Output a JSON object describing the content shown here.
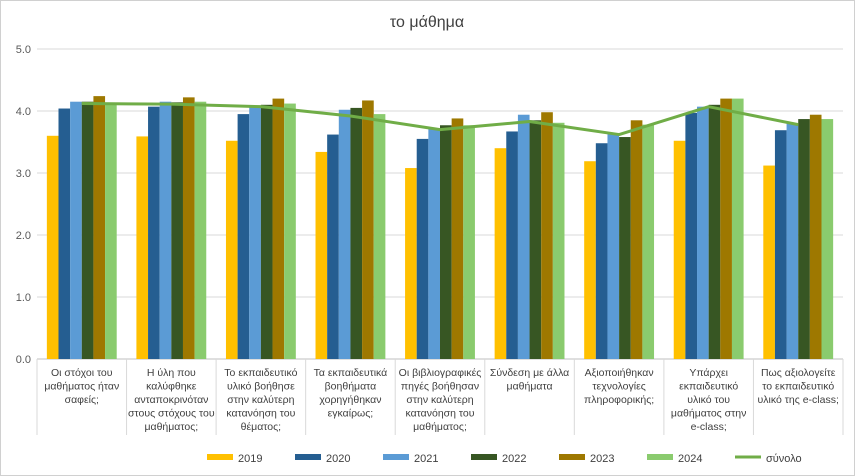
{
  "chart_data": {
    "type": "bar",
    "title": "το μάθημα",
    "xlabel": "",
    "ylabel": "",
    "ylim": [
      0,
      5
    ],
    "yticks": [
      "0.0",
      "1.0",
      "2.0",
      "3.0",
      "4.0",
      "5.0"
    ],
    "grid": true,
    "legend_position": "bottom",
    "categories": [
      "Οι στόχοι του μαθήματος ήταν σαφείς;",
      "Η ύλη που καλύφθηκε ανταποκρινόταν στους στόχους του μαθήματος;",
      "Το εκπαιδευτικό υλικό βοήθησε στην καλύτερη κατανόηση του θέματος;",
      "Τα εκπαιδευτικά βοηθήματα χορηγήθηκαν εγκαίρως;",
      "Οι βιβλιογραφικές πηγές βοήθησαν στην καλύτερη κατανόηση του μαθήματος;",
      "Σύνδεση με άλλα μαθήματα",
      "Αξιοποιήθηκαν τεχνολογίες πληροφορικής;",
      "Υπάρχει εκπαιδευτικό υλικό του μαθήματος στην e-class;",
      "Πως αξιολογείτε το εκπαιδευτικό υλικό της e-class;"
    ],
    "category_lines": [
      [
        "Οι στόχοι του",
        "μαθήματος ήταν",
        "σαφείς;"
      ],
      [
        "Η ύλη που",
        "καλύφθηκε",
        "ανταποκρινόταν",
        "στους στόχους του",
        "μαθήματος;"
      ],
      [
        "Το εκπαιδευτικό",
        "υλικό βοήθησε",
        "στην καλύτερη",
        "κατανόηση του",
        "θέματος;"
      ],
      [
        "Τα εκπαιδευτικά",
        "βοηθήματα",
        "χορηγήθηκαν",
        "εγκαίρως;"
      ],
      [
        "Οι βιβλιογραφικές",
        "πηγές βοήθησαν",
        "στην καλύτερη",
        "κατανόηση του",
        "μαθήματος;"
      ],
      [
        "Σύνδεση με άλλα",
        "μαθήματα"
      ],
      [
        "Αξιοποιήθηκαν",
        "τεχνολογίες",
        "πληροφορικής;"
      ],
      [
        "Υπάρχει",
        "εκπαιδευτικό",
        "υλικό του",
        "μαθήματος στην",
        "e-class;"
      ],
      [
        "Πως αξιολογείτε",
        "το εκπαιδευτικό",
        "υλικό της e-class;"
      ]
    ],
    "series": [
      {
        "name": "2019",
        "color": "#FFC000",
        "values": [
          3.6,
          3.59,
          3.52,
          3.34,
          3.08,
          3.4,
          3.19,
          3.52,
          3.12
        ]
      },
      {
        "name": "2020",
        "color": "#255E91",
        "values": [
          4.04,
          4.07,
          3.95,
          3.62,
          3.55,
          3.67,
          3.48,
          3.97,
          3.69
        ]
      },
      {
        "name": "2021",
        "color": "#5B9BD5",
        "values": [
          4.15,
          4.15,
          4.07,
          4.02,
          3.72,
          3.94,
          3.63,
          4.07,
          3.8
        ]
      },
      {
        "name": "2022",
        "color": "#375623",
        "values": [
          4.15,
          4.14,
          4.1,
          4.05,
          3.77,
          3.85,
          3.58,
          4.1,
          3.87
        ]
      },
      {
        "name": "2023",
        "color": "#9E7800",
        "values": [
          4.24,
          4.22,
          4.2,
          4.17,
          3.88,
          3.98,
          3.85,
          4.2,
          3.94
        ]
      },
      {
        "name": "2024",
        "color": "#8ACB6E",
        "values": [
          4.12,
          4.15,
          4.12,
          3.95,
          3.77,
          3.81,
          3.78,
          4.2,
          3.87
        ]
      }
    ],
    "line_series": {
      "name": "σύνολο",
      "color": "#70AD47",
      "values": [
        4.12,
        4.11,
        4.07,
        3.92,
        3.7,
        3.83,
        3.62,
        4.07,
        3.78
      ]
    }
  }
}
